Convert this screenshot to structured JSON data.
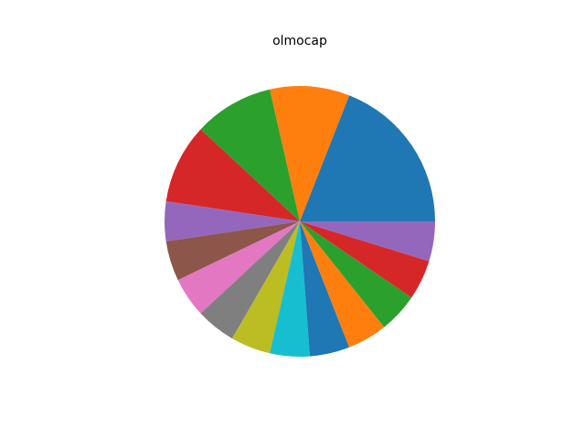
{
  "chart_data": {
    "type": "pie",
    "title": "olmocap",
    "start_angle_deg": 0,
    "direction": "counterclockwise",
    "slices": [
      {
        "value": 20,
        "color": "#1f77b4"
      },
      {
        "value": 10,
        "color": "#ff7f0e"
      },
      {
        "value": 10,
        "color": "#2ca02c"
      },
      {
        "value": 10,
        "color": "#d62728"
      },
      {
        "value": 5,
        "color": "#9467bd"
      },
      {
        "value": 5,
        "color": "#8c564b"
      },
      {
        "value": 5,
        "color": "#e377c2"
      },
      {
        "value": 5,
        "color": "#7f7f7f"
      },
      {
        "value": 5,
        "color": "#bcbd22"
      },
      {
        "value": 5,
        "color": "#17becf"
      },
      {
        "value": 5,
        "color": "#1f77b4"
      },
      {
        "value": 5,
        "color": "#ff7f0e"
      },
      {
        "value": 5,
        "color": "#2ca02c"
      },
      {
        "value": 5,
        "color": "#d62728"
      },
      {
        "value": 5,
        "color": "#9467bd"
      }
    ]
  }
}
